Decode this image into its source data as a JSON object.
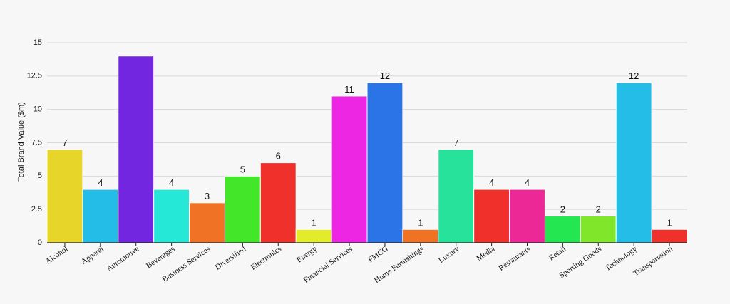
{
  "chart_data": {
    "type": "bar",
    "ylabel": "Total Brand Value ($m)",
    "xlabel": "",
    "ylim": [
      0,
      15
    ],
    "yticks": [
      "0",
      "2.5",
      "5",
      "7.5",
      "10",
      "12.5",
      "15"
    ],
    "grid": true,
    "categories": [
      "Alcohol",
      "Apparel",
      "Automotive",
      "Beverages",
      "Business Services",
      "Diversified",
      "Electronics",
      "Energy",
      "Financial Services",
      "FMCG",
      "Home Furnishings",
      "Luxury",
      "Media",
      "Restaurants",
      "Retail",
      "Sporting Goods",
      "Technology",
      "Transportation"
    ],
    "values": [
      7,
      4,
      14,
      4,
      3,
      5,
      6,
      1,
      11,
      12,
      1,
      7,
      4,
      4,
      2,
      2,
      12,
      1
    ],
    "data_labels": [
      "7",
      "4",
      "",
      "4",
      "3",
      "5",
      "6",
      "1",
      "11",
      "12",
      "1",
      "7",
      "4",
      "4",
      "2",
      "2",
      "12",
      "1"
    ],
    "colors": [
      "#e8d52a",
      "#24bde8",
      "#7226e0",
      "#26e8d6",
      "#f07325",
      "#44e62a",
      "#f0302a",
      "#e3ec2a",
      "#ec26e3",
      "#2a74e8",
      "#f07325",
      "#26e29a",
      "#f0302a",
      "#ec2896",
      "#24e650",
      "#7fe62a",
      "#24bde8",
      "#f0302a"
    ]
  }
}
